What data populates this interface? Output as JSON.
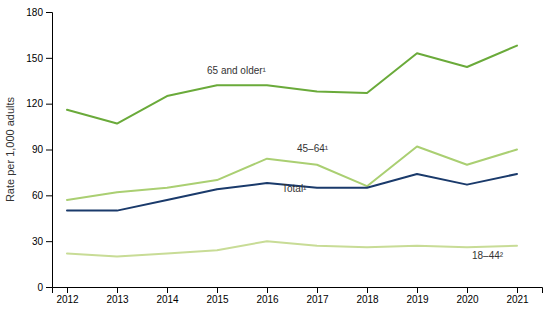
{
  "chart_data": {
    "type": "line",
    "ylabel": "Rate per 1,000 adults",
    "x": [
      2012,
      2013,
      2014,
      2015,
      2016,
      2017,
      2018,
      2019,
      2020,
      2021
    ],
    "series": [
      {
        "name": "65 and older¹",
        "color": "#6aaa3a",
        "values": [
          116,
          107,
          125,
          132,
          132,
          128,
          127,
          153,
          144,
          158
        ],
        "label_x": 2014.8,
        "label_y": 138
      },
      {
        "name": "45–64¹",
        "color": "#aacf72",
        "values": [
          57,
          62,
          65,
          70,
          84,
          80,
          66,
          92,
          80,
          90
        ],
        "label_x": 2016.6,
        "label_y": 87
      },
      {
        "name": "Total¹",
        "color": "#1a3a6b",
        "values": [
          50,
          50,
          57,
          64,
          68,
          65,
          65,
          74,
          67,
          74
        ],
        "label_x": 2016.3,
        "label_y": 61
      },
      {
        "name": "18–44²",
        "color": "#c8dc96",
        "values": [
          22,
          20,
          22,
          24,
          30,
          27,
          26,
          27,
          26,
          27
        ],
        "label_x": 2020.1,
        "label_y": 17
      }
    ],
    "xlim": [
      2011.7,
      2021.5
    ],
    "xticks": [
      2012,
      2013,
      2014,
      2015,
      2016,
      2017,
      2018,
      2019,
      2020,
      2021
    ],
    "ylim": [
      0,
      180
    ],
    "yticks": [
      0,
      30,
      60,
      90,
      120,
      150,
      180
    ],
    "grid": false
  }
}
